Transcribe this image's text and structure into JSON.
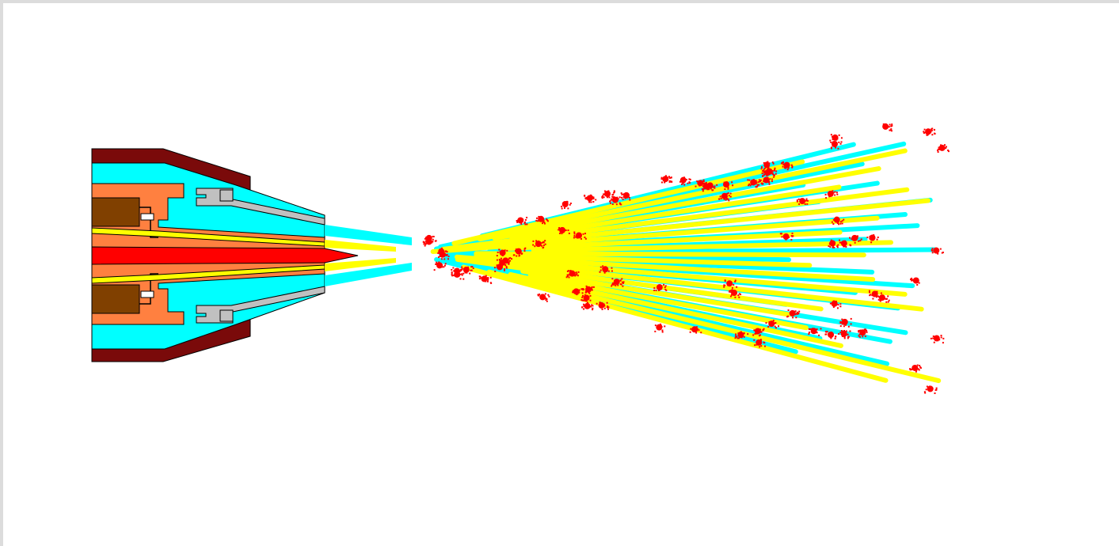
{
  "colors": {
    "frame": "#dcdcdc",
    "background": "#ffffff",
    "outer_shell": "#7a0a0a",
    "cooling_gas": "#00ffff",
    "nozzle_body": "#ff8040",
    "core_block": "#804000",
    "shroud": "#c0c0c0",
    "powder_channel": "#ffff00",
    "flame_core": "#ff0000",
    "outline": "#000000"
  },
  "spray": {
    "cyan_streaks": 22,
    "yellow_streaks": 20,
    "red_particle_clusters": 82
  }
}
